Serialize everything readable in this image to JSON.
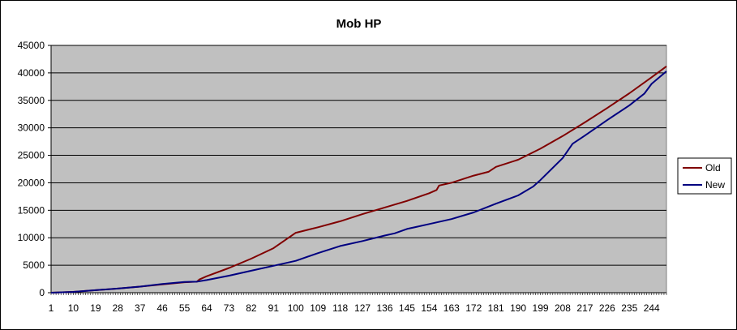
{
  "chart_data": {
    "type": "line",
    "title": "Mob HP",
    "xlabel": "",
    "ylabel": "",
    "xlim": [
      1,
      250
    ],
    "ylim": [
      0,
      45000
    ],
    "yticks": [
      0,
      5000,
      10000,
      15000,
      20000,
      25000,
      30000,
      35000,
      40000,
      45000
    ],
    "xticks": [
      1,
      10,
      19,
      28,
      37,
      46,
      55,
      64,
      73,
      82,
      91,
      100,
      109,
      118,
      127,
      136,
      145,
      154,
      163,
      172,
      181,
      190,
      199,
      208,
      217,
      226,
      235,
      244
    ],
    "grid": true,
    "legend_position": "right",
    "plot_background": "#c0c0c0",
    "series": [
      {
        "name": "Old",
        "color": "#800000",
        "points": [
          [
            1,
            0
          ],
          [
            10,
            150
          ],
          [
            19,
            450
          ],
          [
            28,
            750
          ],
          [
            37,
            1100
          ],
          [
            46,
            1500
          ],
          [
            55,
            1900
          ],
          [
            60,
            2000
          ],
          [
            61,
            2400
          ],
          [
            64,
            3000
          ],
          [
            73,
            4500
          ],
          [
            82,
            6200
          ],
          [
            91,
            8100
          ],
          [
            100,
            10900
          ],
          [
            109,
            11900
          ],
          [
            118,
            13000
          ],
          [
            127,
            14300
          ],
          [
            136,
            15500
          ],
          [
            145,
            16700
          ],
          [
            154,
            18100
          ],
          [
            157,
            18700
          ],
          [
            158,
            19500
          ],
          [
            163,
            20000
          ],
          [
            172,
            21300
          ],
          [
            178,
            22000
          ],
          [
            181,
            22900
          ],
          [
            190,
            24200
          ],
          [
            199,
            26200
          ],
          [
            208,
            28500
          ],
          [
            217,
            31000
          ],
          [
            226,
            33600
          ],
          [
            235,
            36300
          ],
          [
            244,
            39200
          ],
          [
            250,
            41200
          ]
        ]
      },
      {
        "name": "New",
        "color": "#000080",
        "points": [
          [
            1,
            0
          ],
          [
            10,
            150
          ],
          [
            19,
            450
          ],
          [
            28,
            750
          ],
          [
            37,
            1100
          ],
          [
            46,
            1600
          ],
          [
            55,
            1950
          ],
          [
            60,
            2000
          ],
          [
            64,
            2300
          ],
          [
            73,
            3100
          ],
          [
            82,
            4000
          ],
          [
            91,
            4900
          ],
          [
            100,
            5800
          ],
          [
            109,
            7200
          ],
          [
            118,
            8500
          ],
          [
            127,
            9400
          ],
          [
            136,
            10400
          ],
          [
            140,
            10800
          ],
          [
            145,
            11600
          ],
          [
            154,
            12500
          ],
          [
            163,
            13400
          ],
          [
            172,
            14600
          ],
          [
            181,
            16200
          ],
          [
            190,
            17700
          ],
          [
            196,
            19300
          ],
          [
            199,
            20500
          ],
          [
            208,
            24500
          ],
          [
            212,
            27100
          ],
          [
            217,
            28600
          ],
          [
            226,
            31400
          ],
          [
            235,
            34100
          ],
          [
            241,
            36200
          ],
          [
            244,
            38000
          ],
          [
            250,
            40300
          ]
        ]
      }
    ]
  }
}
